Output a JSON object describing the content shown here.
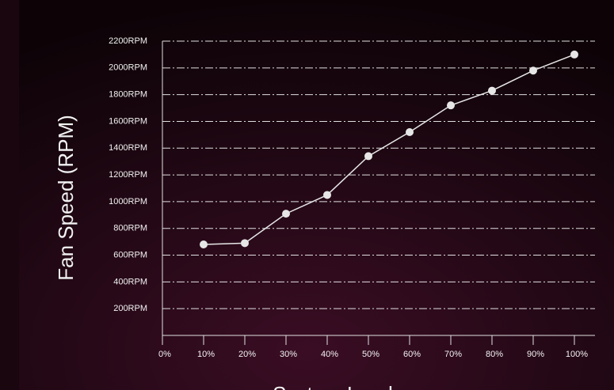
{
  "chart_data": {
    "type": "line",
    "x_label": "System Load",
    "y_label": "Fan Speed (RPM)",
    "x": [
      10,
      20,
      30,
      40,
      50,
      60,
      70,
      80,
      90,
      100
    ],
    "series": [
      {
        "color": "#e6e6e6",
        "values": [
          680,
          690,
          910,
          1050,
          1340,
          1520,
          1720,
          1830,
          1980,
          2100
        ]
      }
    ],
    "xlim": [
      0,
      105
    ],
    "ylim": [
      0,
      2200
    ],
    "xticks": [
      {
        "value": 0,
        "label": "0%"
      },
      {
        "value": 10,
        "label": "10%"
      },
      {
        "value": 20,
        "label": "20%"
      },
      {
        "value": 30,
        "label": "30%"
      },
      {
        "value": 40,
        "label": "40%"
      },
      {
        "value": 50,
        "label": "50%"
      },
      {
        "value": 60,
        "label": "60%"
      },
      {
        "value": 70,
        "label": "70%"
      },
      {
        "value": 80,
        "label": "80%"
      },
      {
        "value": 90,
        "label": "90%"
      },
      {
        "value": 100,
        "label": "100%"
      }
    ],
    "yticks": [
      {
        "value": 200,
        "label": "200RPM"
      },
      {
        "value": 400,
        "label": "400RPM"
      },
      {
        "value": 600,
        "label": "600RPM"
      },
      {
        "value": 800,
        "label": "800RPM"
      },
      {
        "value": 1000,
        "label": "1000RPM"
      },
      {
        "value": 1200,
        "label": "1200RPM"
      },
      {
        "value": 1400,
        "label": "1400RPM"
      },
      {
        "value": 1600,
        "label": "1600RPM"
      },
      {
        "value": 1800,
        "label": "1800RPM"
      },
      {
        "value": 2000,
        "label": "2000RPM"
      },
      {
        "value": 2200,
        "label": "2200RPM"
      }
    ],
    "grid": true
  }
}
